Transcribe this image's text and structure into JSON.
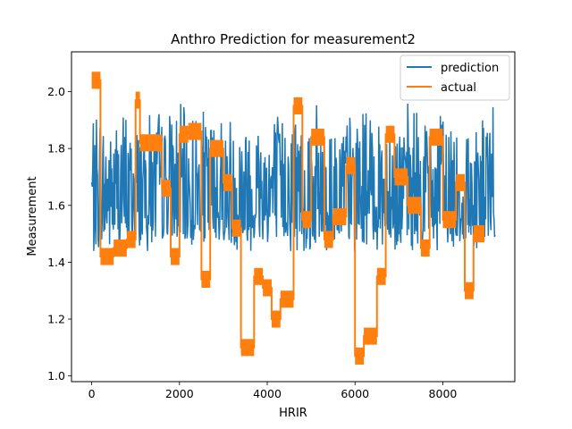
{
  "chart_data": {
    "type": "line",
    "title": "Anthro Prediction for measurement2",
    "xlabel": "HRIR",
    "ylabel": "Measurement",
    "xlim": [
      -460,
      9640
    ],
    "ylim": [
      0.98,
      2.14
    ],
    "xticks": [
      0,
      2000,
      4000,
      6000,
      8000
    ],
    "xtick_labels": [
      "0",
      "2000",
      "4000",
      "6000",
      "8000"
    ],
    "yticks": [
      1.0,
      1.2,
      1.4,
      1.6,
      1.8,
      2.0
    ],
    "ytick_labels": [
      "1.0",
      "1.2",
      "1.4",
      "1.6",
      "1.8",
      "2.0"
    ],
    "grid": false,
    "legend_position": "top-right",
    "series": [
      {
        "name": "prediction",
        "color": "#1f77b4",
        "x_range": [
          0,
          9200
        ],
        "baseline_points": [
          [
            0,
            1.6
          ],
          [
            500,
            1.61
          ],
          [
            1000,
            1.62
          ],
          [
            1500,
            1.64
          ],
          [
            2000,
            1.6
          ],
          [
            2500,
            1.62
          ],
          [
            3000,
            1.61
          ],
          [
            3500,
            1.6
          ],
          [
            4000,
            1.62
          ],
          [
            4500,
            1.63
          ],
          [
            5000,
            1.61
          ],
          [
            5500,
            1.6
          ],
          [
            6000,
            1.62
          ],
          [
            6500,
            1.63
          ],
          [
            7000,
            1.62
          ],
          [
            7500,
            1.6
          ],
          [
            8000,
            1.62
          ],
          [
            8500,
            1.6
          ],
          [
            9200,
            1.58
          ]
        ],
        "band_min": 1.42,
        "band_max": 1.97
      },
      {
        "name": "actual",
        "color": "#ff7f0e",
        "steps": [
          [
            0,
            200,
            2.04
          ],
          [
            200,
            500,
            1.42
          ],
          [
            500,
            800,
            1.45
          ],
          [
            800,
            1000,
            1.48
          ],
          [
            1000,
            1100,
            1.97
          ],
          [
            1100,
            1300,
            1.82
          ],
          [
            1300,
            1600,
            1.82
          ],
          [
            1600,
            1800,
            1.66
          ],
          [
            1800,
            2000,
            1.42
          ],
          [
            2000,
            2200,
            1.85
          ],
          [
            2200,
            2500,
            1.86
          ],
          [
            2500,
            2700,
            1.34
          ],
          [
            2700,
            3000,
            1.8
          ],
          [
            3000,
            3200,
            1.68
          ],
          [
            3200,
            3400,
            1.52
          ],
          [
            3400,
            3700,
            1.1
          ],
          [
            3700,
            3900,
            1.35
          ],
          [
            3900,
            4100,
            1.31
          ],
          [
            4100,
            4300,
            1.2
          ],
          [
            4300,
            4600,
            1.27
          ],
          [
            4600,
            4800,
            1.95
          ],
          [
            4800,
            5000,
            1.55
          ],
          [
            5000,
            5300,
            1.84
          ],
          [
            5300,
            5500,
            1.48
          ],
          [
            5500,
            5800,
            1.56
          ],
          [
            5800,
            6000,
            1.74
          ],
          [
            6000,
            6200,
            1.07
          ],
          [
            6200,
            6500,
            1.14
          ],
          [
            6500,
            6700,
            1.35
          ],
          [
            6700,
            6900,
            1.85
          ],
          [
            6900,
            7200,
            1.7
          ],
          [
            7200,
            7500,
            1.6
          ],
          [
            7500,
            7700,
            1.45
          ],
          [
            7700,
            8000,
            1.84
          ],
          [
            8000,
            8300,
            1.55
          ],
          [
            8300,
            8500,
            1.68
          ],
          [
            8500,
            8700,
            1.3
          ],
          [
            8700,
            8950,
            1.5
          ]
        ]
      }
    ]
  }
}
